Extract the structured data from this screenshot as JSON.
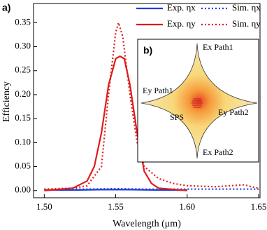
{
  "chart_data": {
    "type": "line",
    "panel_label": "a)",
    "x_label": "Wavelength (μm)",
    "y_label": "Efficiency",
    "xlim": [
      1.4925,
      1.651
    ],
    "ylim": [
      -0.015,
      0.39
    ],
    "xticks": [
      {
        "value": 1.5,
        "label": "1.50"
      },
      {
        "value": 1.55,
        "label": "1.55"
      },
      {
        "value": 1.6,
        "label": "1.60"
      },
      {
        "value": 1.65,
        "label": "1.65"
      }
    ],
    "yticks": [
      {
        "value": 0,
        "label": "0.00"
      },
      {
        "value": 0.05,
        "label": "0.05"
      },
      {
        "value": 0.1,
        "label": "0.10"
      },
      {
        "value": 0.15,
        "label": "0.15"
      },
      {
        "value": 0.2,
        "label": "0.20"
      },
      {
        "value": 0.25,
        "label": "0.25"
      },
      {
        "value": 0.3,
        "label": "0.30"
      },
      {
        "value": 0.35,
        "label": "0.35"
      }
    ],
    "series": [
      {
        "name": "Exp. ηx",
        "color": "#1f3fd6",
        "dash": false,
        "x": [
          1.5,
          1.52,
          1.54,
          1.55,
          1.56,
          1.58,
          1.6
        ],
        "values": [
          0.001,
          0.001,
          0.002,
          0.002,
          0.002,
          0.001,
          0.001
        ]
      },
      {
        "name": "Sim. ηx",
        "color": "#1f3fd6",
        "dash": true,
        "x": [
          1.5,
          1.53,
          1.55,
          1.57,
          1.6,
          1.63,
          1.65
        ],
        "values": [
          0.003,
          0.003,
          0.004,
          0.003,
          0.003,
          0.003,
          0.003
        ]
      },
      {
        "name": "Exp. ηy",
        "color": "#e01b1b",
        "dash": false,
        "x": [
          1.5,
          1.52,
          1.53,
          1.535,
          1.54,
          1.545,
          1.55,
          1.553,
          1.556,
          1.56,
          1.565,
          1.57,
          1.575,
          1.58,
          1.6
        ],
        "values": [
          0.0,
          0.005,
          0.02,
          0.05,
          0.12,
          0.22,
          0.275,
          0.28,
          0.275,
          0.22,
          0.12,
          0.04,
          0.015,
          0.005,
          0.0
        ]
      },
      {
        "name": "Sim. ηy",
        "color": "#e01b1b",
        "dash": true,
        "x": [
          1.5,
          1.52,
          1.53,
          1.54,
          1.545,
          1.55,
          1.552,
          1.555,
          1.56,
          1.565,
          1.57,
          1.58,
          1.59,
          1.6,
          1.62,
          1.64,
          1.645,
          1.65
        ],
        "values": [
          0.003,
          0.005,
          0.01,
          0.05,
          0.2,
          0.33,
          0.35,
          0.32,
          0.2,
          0.1,
          0.05,
          0.025,
          0.015,
          0.01,
          0.008,
          0.012,
          0.008,
          0.005
        ]
      }
    ],
    "inset": {
      "label": "b)",
      "annotations": [
        "Ex Path1",
        "Ey Path1",
        "SPS",
        "Ey Path2",
        "Ex Path2"
      ]
    }
  }
}
